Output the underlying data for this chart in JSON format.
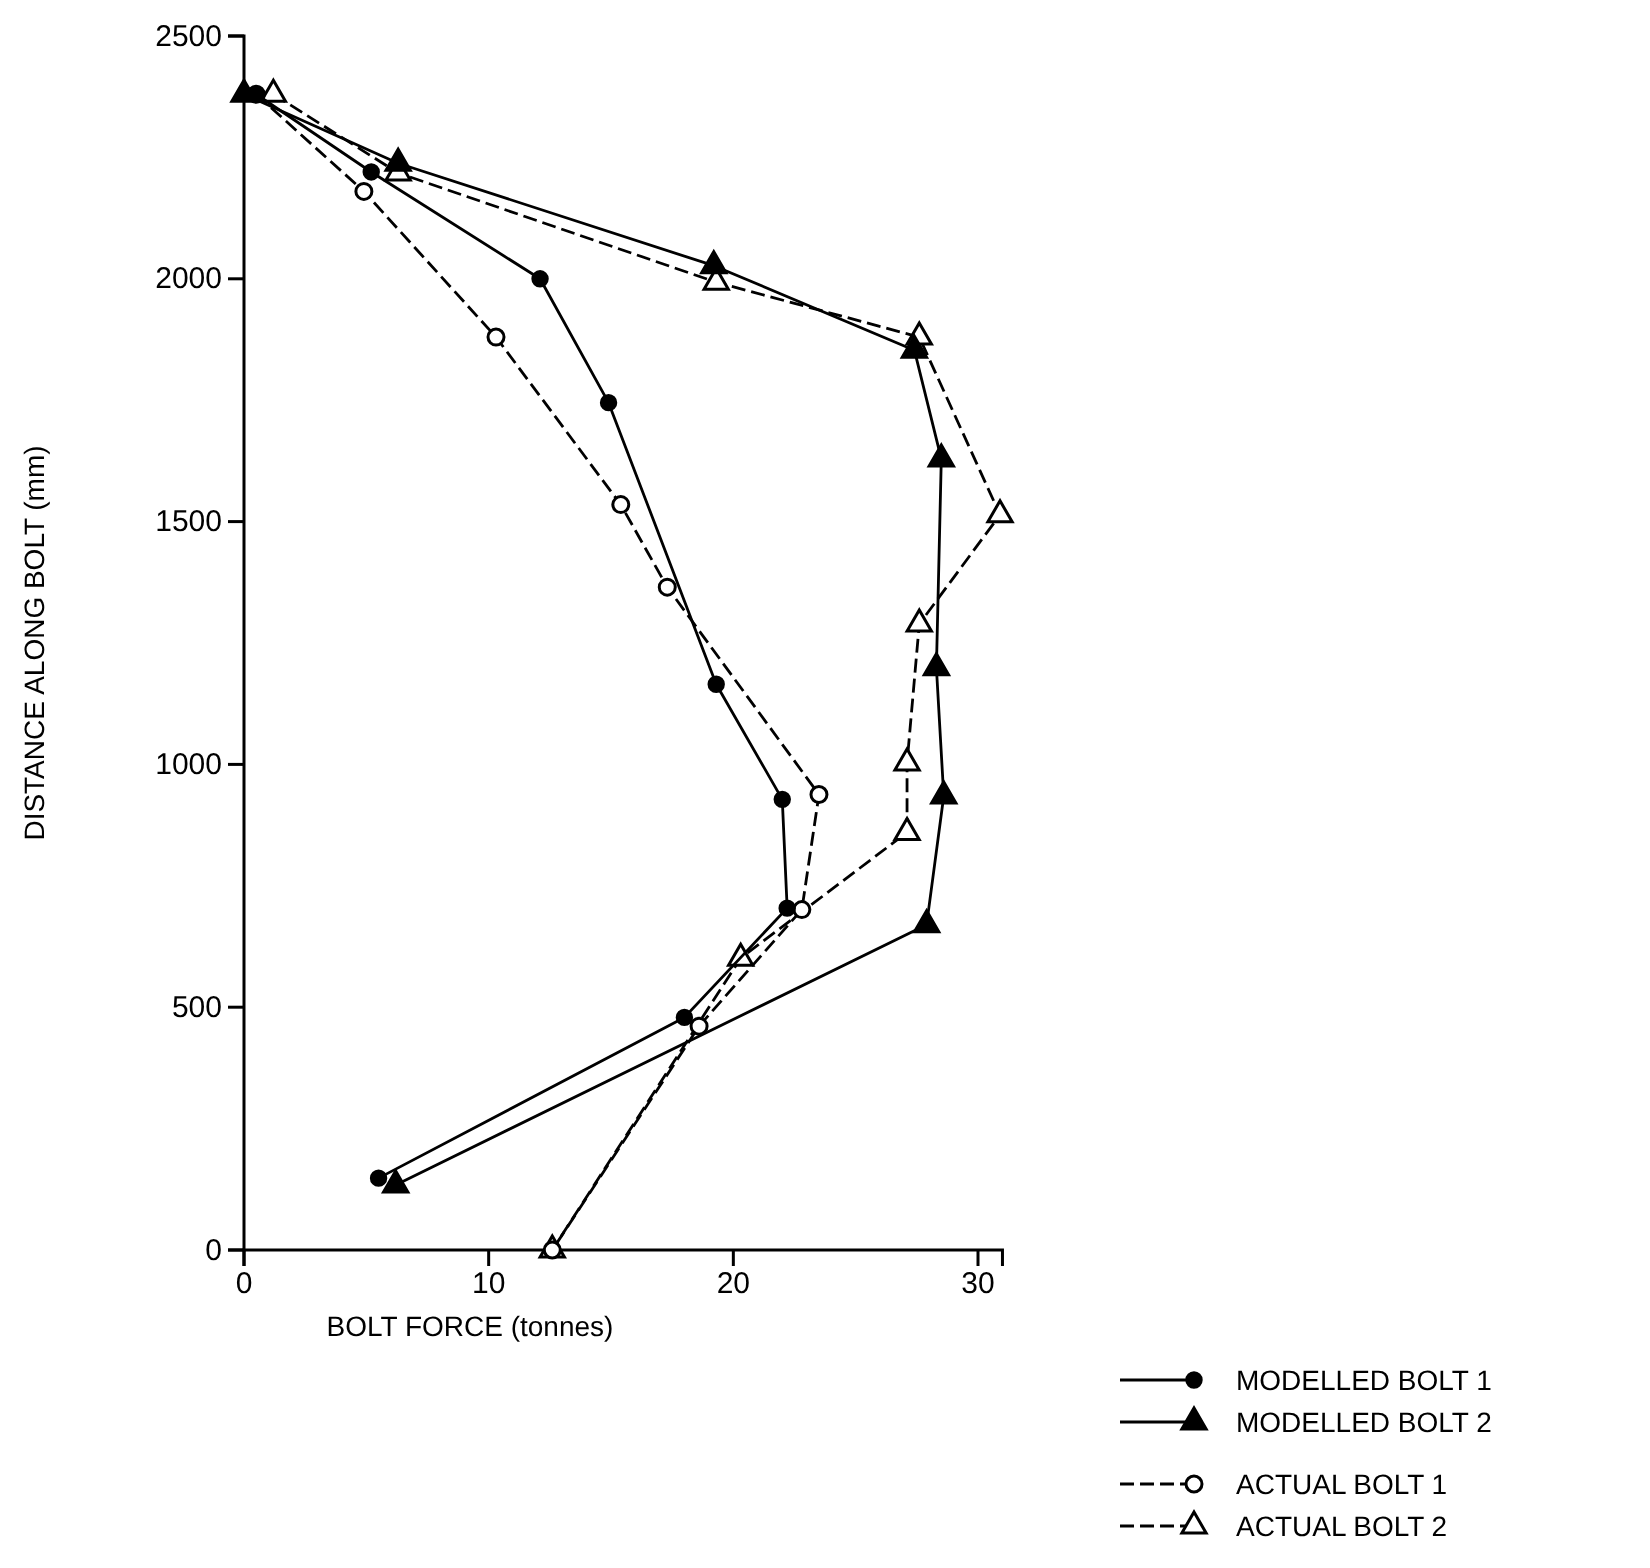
{
  "chart_data": {
    "type": "line",
    "xlabel": "BOLT FORCE (tonnes)",
    "ylabel": "DISTANCE ALONG BOLT (mm)",
    "xlim": [
      0,
      31
    ],
    "xticks": [
      0,
      10,
      20,
      30
    ],
    "ylim": [
      0,
      2500
    ],
    "yticks": [
      0,
      500,
      1000,
      1500,
      2000,
      2500
    ],
    "grid": false,
    "legend": "bottom right",
    "series": [
      {
        "name": "MODELLED BOLT 1",
        "color": "#000000",
        "marker": "circle",
        "line_style": "solid",
        "x": [
          0.5,
          5.2,
          12.1,
          14.9,
          19.3,
          22.0,
          22.2,
          18.0,
          5.5
        ],
        "values": [
          2380,
          2220,
          2000,
          1745,
          1165,
          928,
          704,
          479,
          148
        ]
      },
      {
        "name": "MODELLED BOLT 2",
        "color": "#000000",
        "marker": "triangle",
        "line_style": "solid",
        "x": [
          0,
          6.3,
          19.2,
          27.4,
          28.5,
          28.3,
          28.6,
          27.9,
          6.2
        ],
        "values": [
          2380,
          2238,
          2027,
          1853,
          1629,
          1199,
          935,
          670,
          134
        ]
      },
      {
        "name": "ACTUAL BOLT 1",
        "color": "#000000",
        "marker": "circle",
        "line_style": "dashed",
        "x": [
          0.5,
          4.9,
          10.3,
          15.4,
          17.3,
          23.5,
          22.8,
          18.6,
          12.6
        ],
        "values": [
          2380,
          2180,
          1880,
          1535,
          1365,
          938,
          701,
          461,
          0
        ]
      },
      {
        "name": "ACTUAL BOLT 2",
        "color": "#000000",
        "marker": "triangle",
        "line_style": "dashed",
        "x": [
          1.2,
          6.3,
          19.3,
          27.6,
          30.9,
          27.6,
          27.1,
          27.1,
          20.3,
          12.6
        ],
        "values": [
          2380,
          2218,
          1993,
          1880,
          1514,
          1289,
          1003,
          860,
          601,
          0
        ]
      }
    ]
  }
}
